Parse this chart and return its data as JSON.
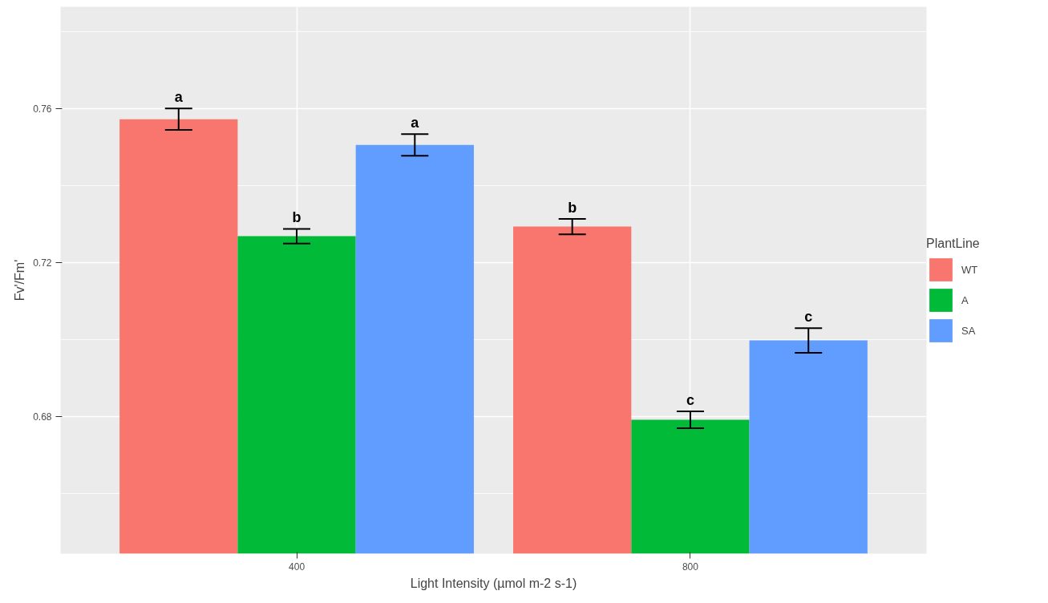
{
  "chart_data": {
    "type": "bar",
    "xlabel": "Light Intensity (µmol m-2 s-1)",
    "ylabel": "Fv'/Fm'",
    "legend_title": "PlantLine",
    "categories": [
      "400",
      "800"
    ],
    "series": [
      {
        "name": "WT",
        "color": "#f8766d",
        "values": [
          0.7573,
          0.7294
        ],
        "errors": [
          0.0028,
          0.002
        ]
      },
      {
        "name": "A",
        "color": "#00ba38",
        "values": [
          0.7269,
          0.6792
        ],
        "errors": [
          0.0019,
          0.0022
        ]
      },
      {
        "name": "SA",
        "color": "#619cff",
        "values": [
          0.7506,
          0.6998
        ],
        "errors": [
          0.0028,
          0.0032
        ]
      }
    ],
    "ylim": [
      0.6444,
      0.7865
    ],
    "yticks": [
      {
        "value": 0.68,
        "label": "0.68"
      },
      {
        "value": 0.72,
        "label": "0.72"
      },
      {
        "value": 0.76,
        "label": "0.76"
      }
    ],
    "grid": true,
    "legend": "right",
    "annotations": [
      "a",
      "b",
      "a",
      "b",
      "c",
      "c"
    ]
  }
}
